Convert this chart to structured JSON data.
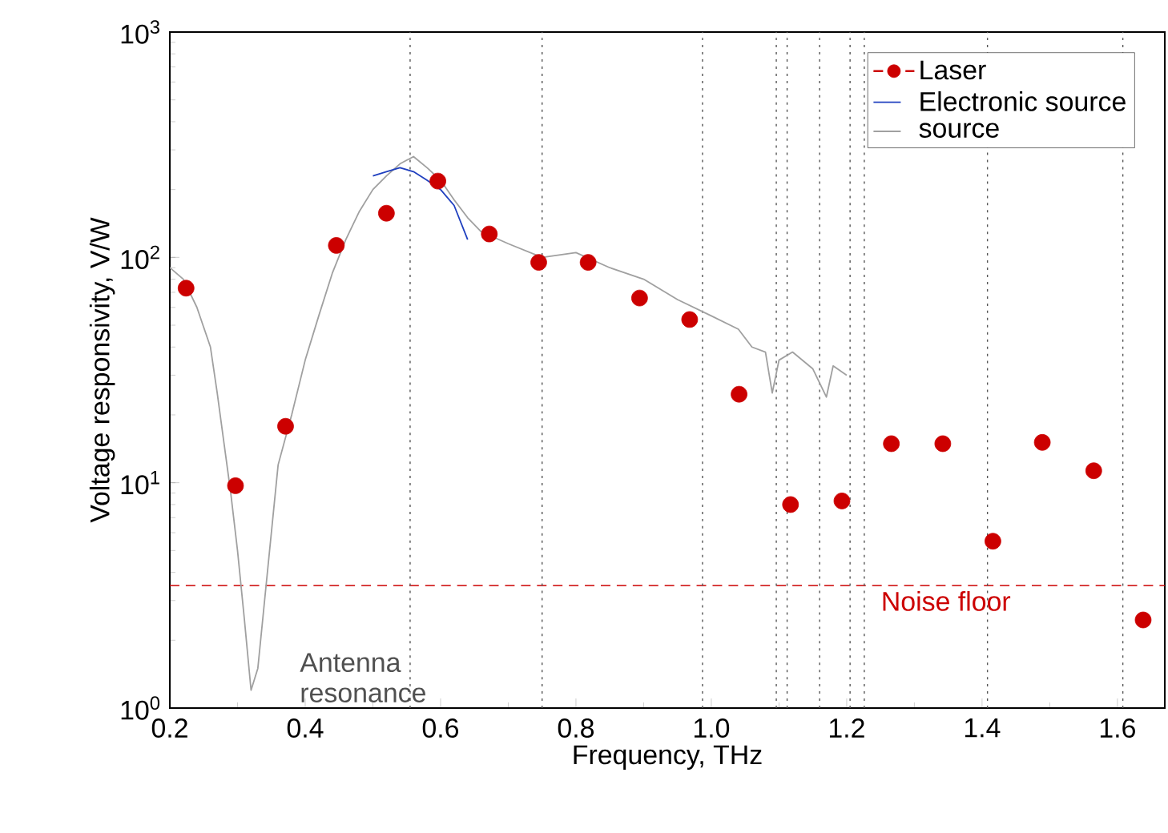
{
  "chart_data": {
    "type": "line",
    "xlabel": "Frequency, THz",
    "ylabel": "Voltage responsivity, V/W",
    "log": "y",
    "legend": "top right",
    "xlim": [
      0.2,
      1.67
    ],
    "ylim": [
      1,
      1000
    ],
    "xticks": [
      0.2,
      0.4,
      0.6,
      0.8,
      {
        "value": 1.0,
        "label": "1.0"
      },
      1.2,
      1.4,
      1.6
    ],
    "yticks": [
      {
        "value": 1,
        "label": "10$^{0}$"
      },
      {
        "value": 10,
        "label": "10$^{1}$"
      },
      {
        "value": 100,
        "label": "10$^{2}$"
      },
      {
        "value": 1000,
        "label": "10$^{3}$"
      }
    ],
    "series": [
      {
        "name": "Laser",
        "type": "scatter",
        "marker": "circle",
        "color": "#cc0000",
        "x": [
          0.224,
          0.297,
          0.371,
          0.446,
          0.52,
          0.596,
          0.672,
          0.745,
          0.818,
          0.894,
          0.968,
          1.041,
          1.117,
          1.193,
          1.266,
          1.342,
          1.416,
          1.489,
          1.565,
          1.638
        ],
        "values": [
          73,
          9.7,
          17.8,
          113,
          157,
          218,
          127,
          95,
          95,
          66,
          53,
          24.7,
          8.0,
          8.3,
          14.9,
          14.9,
          5.5,
          15.1,
          11.3,
          2.46
        ]
      },
      {
        "name": "Electronic source",
        "color": "#1f3fbf",
        "x": [
          0.5,
          0.52,
          0.54,
          0.56,
          0.58,
          0.6,
          0.62,
          0.64
        ],
        "values": [
          230,
          240,
          250,
          240,
          220,
          200,
          170,
          120
        ]
      },
      {
        "name": "source",
        "color": "#a0a0a0",
        "x": [
          0.2,
          0.22,
          0.24,
          0.26,
          0.27,
          0.28,
          0.29,
          0.3,
          0.31,
          0.32,
          0.33,
          0.34,
          0.35,
          0.36,
          0.38,
          0.4,
          0.42,
          0.44,
          0.46,
          0.48,
          0.5,
          0.52,
          0.54,
          0.56,
          0.58,
          0.6,
          0.62,
          0.64,
          0.66,
          0.7,
          0.75,
          0.8,
          0.85,
          0.9,
          0.95,
          1.0,
          1.04,
          1.06,
          1.08,
          1.09,
          1.1,
          1.12,
          1.15,
          1.17,
          1.18,
          1.2
        ],
        "values": [
          90,
          80,
          60,
          40,
          25,
          15,
          9,
          5,
          2.5,
          1.2,
          1.5,
          3,
          6,
          12,
          20,
          35,
          55,
          85,
          120,
          160,
          200,
          230,
          260,
          280,
          250,
          220,
          180,
          150,
          130,
          115,
          100,
          105,
          90,
          80,
          65,
          55,
          48,
          40,
          38,
          25,
          35,
          38,
          32,
          24,
          33,
          30
        ]
      }
    ],
    "ref_lines": [
      {
        "axis": "y",
        "value": 3.5,
        "label": "Noise floor",
        "color": "#cc0000",
        "line_style": "dashed"
      },
      {
        "axis": "x",
        "value": 0.555,
        "color": "#555555",
        "line_style": "dotted"
      },
      {
        "axis": "x",
        "value": 0.75,
        "color": "#555555",
        "line_style": "dotted"
      },
      {
        "axis": "x",
        "value": 0.987,
        "color": "#555555",
        "line_style": "dotted"
      },
      {
        "axis": "x",
        "value": 1.096,
        "color": "#555555",
        "line_style": "dotted"
      },
      {
        "axis": "x",
        "value": 1.112,
        "color": "#555555",
        "line_style": "dotted"
      },
      {
        "axis": "x",
        "value": 1.16,
        "color": "#555555",
        "line_style": "dotted"
      },
      {
        "axis": "x",
        "value": 1.205,
        "color": "#555555",
        "line_style": "dotted"
      },
      {
        "axis": "x",
        "value": 1.226,
        "color": "#555555",
        "line_style": "dotted"
      },
      {
        "axis": "x",
        "value": 1.408,
        "color": "#555555",
        "line_style": "dotted"
      },
      {
        "axis": "x",
        "value": 1.608,
        "color": "#555555",
        "line_style": "dotted"
      }
    ],
    "annotations": [
      "Antenna resonance"
    ]
  }
}
